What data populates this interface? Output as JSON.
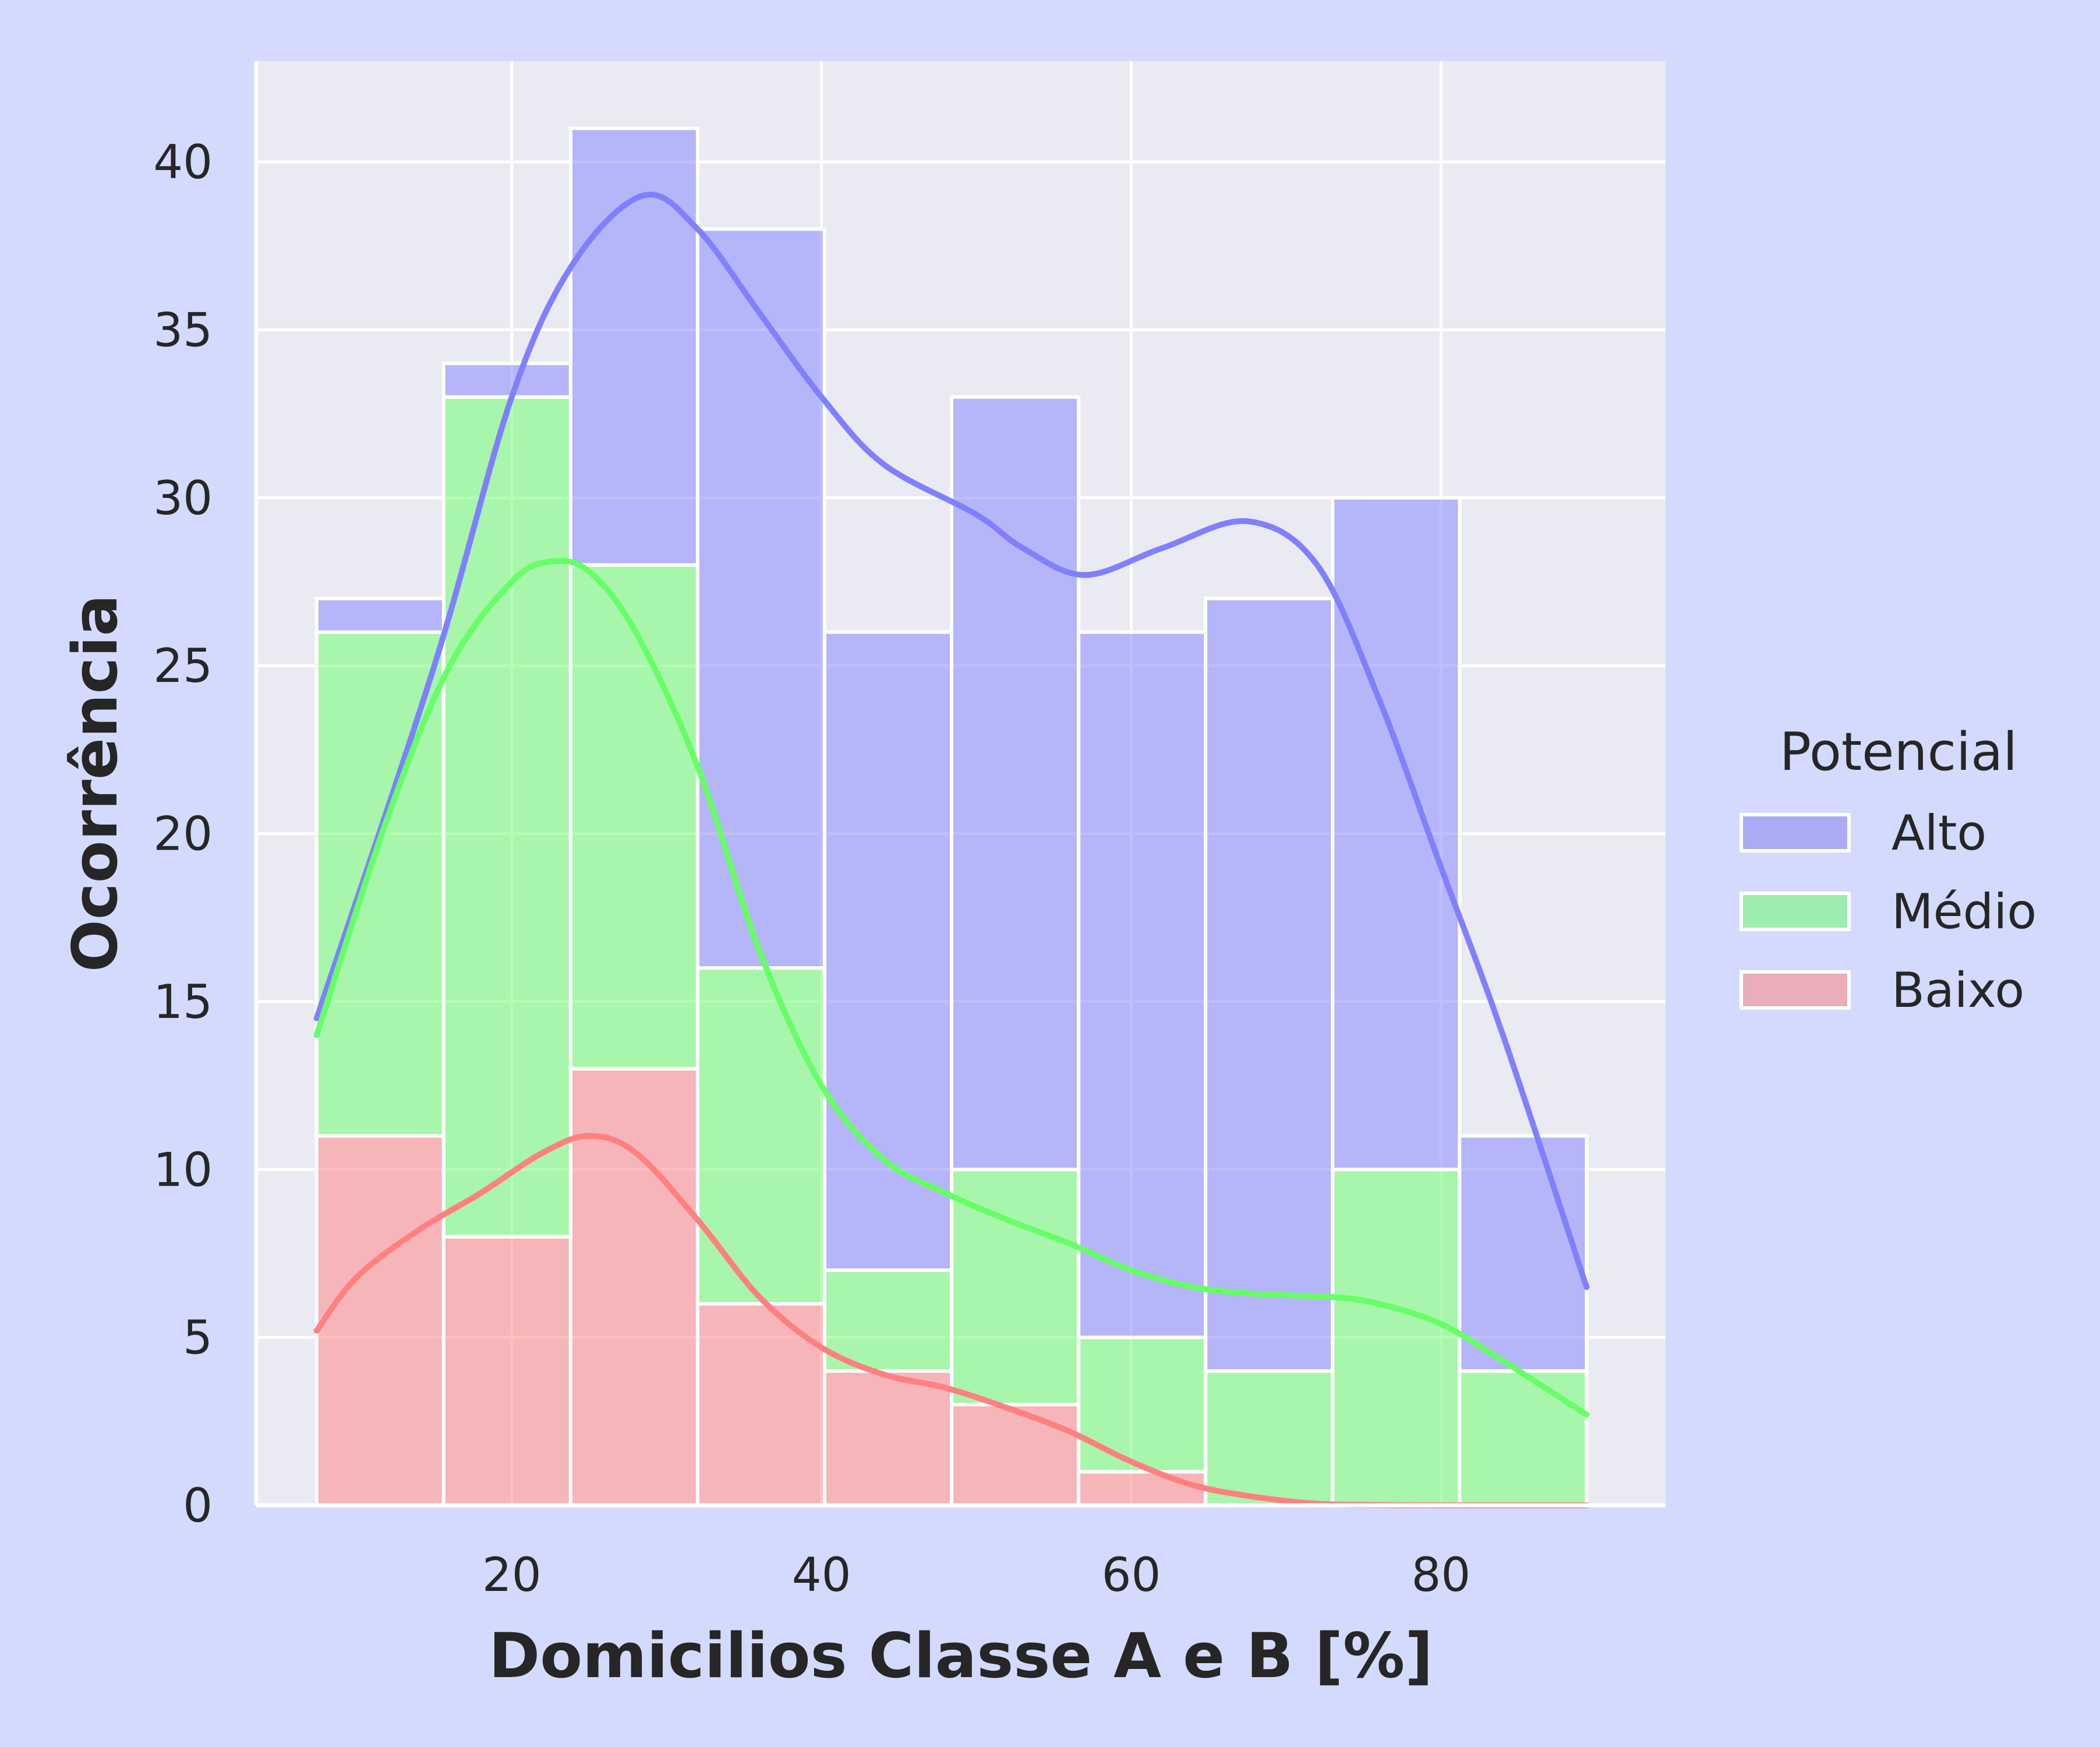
{
  "chart_data": {
    "type": "bar",
    "stacked": true,
    "xlabel": "Domicilios Classe A e B [%]",
    "ylabel": "Ocorrência",
    "xlim": [
      3.5,
      94.5
    ],
    "ylim": [
      0,
      43
    ],
    "xticks": [
      20,
      40,
      60,
      80
    ],
    "yticks": [
      0,
      5,
      10,
      15,
      20,
      25,
      30,
      35,
      40
    ],
    "grid": true,
    "bin_edges": [
      7.4,
      15.6,
      23.8,
      32.0,
      40.2,
      48.4,
      56.6,
      64.8,
      73.0,
      81.2,
      89.4
    ],
    "series": [
      {
        "name": "Baixo",
        "color": "#ff8080",
        "values": [
          11,
          8,
          13,
          6,
          4,
          3,
          1,
          0,
          0,
          0
        ]
      },
      {
        "name": "Médio",
        "color": "#66ff66",
        "values": [
          15,
          25,
          15,
          10,
          3,
          7,
          4,
          4,
          10,
          4
        ]
      },
      {
        "name": "Alto",
        "color": "#8080ff",
        "values": [
          1,
          1,
          13,
          22,
          19,
          23,
          21,
          23,
          20,
          7
        ]
      }
    ],
    "kde": [
      {
        "name": "Alto",
        "color": "#8080ff",
        "points": [
          [
            7.4,
            14.5
          ],
          [
            15,
            25
          ],
          [
            20,
            33
          ],
          [
            24,
            37
          ],
          [
            28.5,
            39
          ],
          [
            32,
            38
          ],
          [
            36,
            35.5
          ],
          [
            40,
            33
          ],
          [
            44,
            31
          ],
          [
            50,
            29.5
          ],
          [
            53,
            28.5
          ],
          [
            57,
            27.7
          ],
          [
            62,
            28.5
          ],
          [
            67.5,
            29.3
          ],
          [
            72,
            28
          ],
          [
            76,
            24
          ],
          [
            80,
            19
          ],
          [
            84,
            14
          ],
          [
            89.4,
            6.5
          ]
        ]
      },
      {
        "name": "Médio",
        "color": "#66ff66",
        "points": [
          [
            7.4,
            14
          ],
          [
            12,
            20.5
          ],
          [
            16,
            25
          ],
          [
            20,
            27.5
          ],
          [
            22.5,
            28.1
          ],
          [
            25,
            27.8
          ],
          [
            28,
            26
          ],
          [
            32,
            22
          ],
          [
            36,
            16.5
          ],
          [
            40,
            12.5
          ],
          [
            44,
            10.3
          ],
          [
            48,
            9.3
          ],
          [
            52,
            8.5
          ],
          [
            56,
            7.8
          ],
          [
            60,
            7
          ],
          [
            64,
            6.5
          ],
          [
            68,
            6.3
          ],
          [
            73,
            6.2
          ],
          [
            76,
            6
          ],
          [
            80,
            5.4
          ],
          [
            84,
            4.3
          ],
          [
            89.4,
            2.7
          ]
        ]
      },
      {
        "name": "Baixo",
        "color": "#ff8080",
        "points": [
          [
            7.4,
            5.2
          ],
          [
            10,
            6.8
          ],
          [
            14,
            8.2
          ],
          [
            18,
            9.3
          ],
          [
            22,
            10.5
          ],
          [
            25,
            11
          ],
          [
            28,
            10.5
          ],
          [
            32,
            8.5
          ],
          [
            36,
            6.2
          ],
          [
            40,
            4.7
          ],
          [
            44,
            3.9
          ],
          [
            48,
            3.5
          ],
          [
            52,
            2.9
          ],
          [
            56,
            2.2
          ],
          [
            60,
            1.3
          ],
          [
            64,
            0.6
          ],
          [
            68,
            0.25
          ],
          [
            72,
            0.05
          ],
          [
            76,
            0.01
          ],
          [
            80,
            0
          ],
          [
            89.4,
            0
          ]
        ]
      }
    ],
    "legend": {
      "title": "Potencial",
      "position": "right",
      "entries": [
        {
          "label": "Alto",
          "color": "#a9acf5"
        },
        {
          "label": "Médio",
          "color": "#9decb0"
        },
        {
          "label": "Baixo",
          "color": "#eaaeb8"
        }
      ]
    }
  },
  "page": {
    "background": "#d3dafd",
    "plot_background": "#eaeaf2"
  }
}
